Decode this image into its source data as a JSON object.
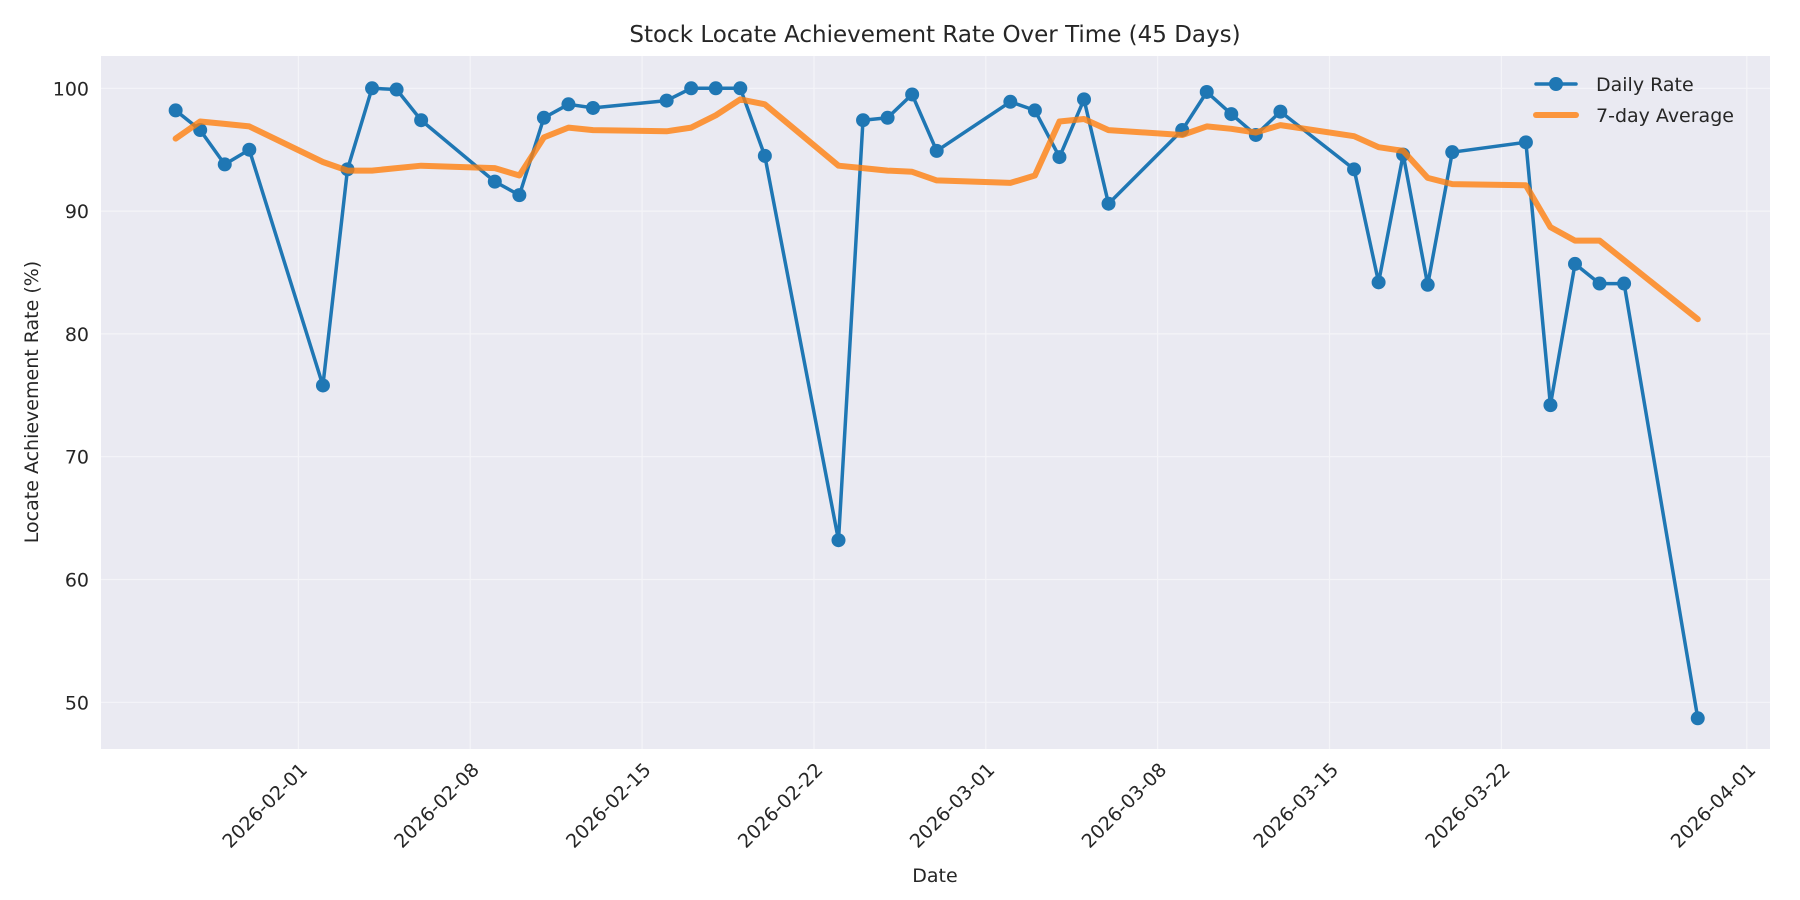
{
  "chart_data": {
    "type": "line",
    "title": "Stock Locate Achievement Rate Over Time (45 Days)",
    "xlabel": "Date",
    "ylabel": "Locate Achievement Rate (%)",
    "ylim": [
      46.3,
      102.6
    ],
    "yticks": [
      50,
      60,
      70,
      80,
      90,
      100
    ],
    "xticks": [
      "2026-02-01",
      "2026-02-08",
      "2026-02-15",
      "2026-02-22",
      "2026-03-01",
      "2026-03-08",
      "2026-03-15",
      "2026-03-22",
      "2026-04-01"
    ],
    "grid": true,
    "legend_position": "upper right",
    "x": [
      "2026-01-27",
      "2026-01-28",
      "2026-01-29",
      "2026-01-30",
      "2026-02-02",
      "2026-02-03",
      "2026-02-04",
      "2026-02-05",
      "2026-02-06",
      "2026-02-09",
      "2026-02-10",
      "2026-02-11",
      "2026-02-12",
      "2026-02-13",
      "2026-02-16",
      "2026-02-17",
      "2026-02-18",
      "2026-02-19",
      "2026-02-20",
      "2026-02-23",
      "2026-02-24",
      "2026-02-25",
      "2026-02-26",
      "2026-02-27",
      "2026-03-02",
      "2026-03-03",
      "2026-03-04",
      "2026-03-05",
      "2026-03-06",
      "2026-03-09",
      "2026-03-10",
      "2026-03-11",
      "2026-03-12",
      "2026-03-13",
      "2026-03-16",
      "2026-03-17",
      "2026-03-18",
      "2026-03-19",
      "2026-03-20",
      "2026-03-23",
      "2026-03-24",
      "2026-03-25",
      "2026-03-26",
      "2026-03-27",
      "2026-03-30"
    ],
    "series": [
      {
        "name": "Daily Rate",
        "color": "#1f77b4",
        "marker": "circle",
        "values": [
          98.2,
          96.6,
          93.8,
          95.0,
          75.8,
          93.4,
          100.0,
          99.9,
          97.4,
          92.4,
          91.3,
          97.6,
          98.7,
          98.4,
          99.0,
          100.0,
          100.0,
          100.0,
          94.5,
          63.2,
          97.4,
          97.6,
          99.5,
          94.9,
          98.9,
          98.2,
          94.4,
          99.1,
          90.6,
          96.6,
          99.7,
          97.9,
          96.2,
          98.1,
          93.4,
          84.2,
          94.6,
          84.0,
          94.8,
          95.6,
          74.2,
          85.7,
          84.1,
          84.1,
          48.7
        ]
      },
      {
        "name": "7-day Average",
        "color": "#ff7f0e",
        "marker": "none",
        "values": [
          95.9,
          97.3,
          97.1,
          96.9,
          94.0,
          93.3,
          93.3,
          93.5,
          93.7,
          93.5,
          92.9,
          96.0,
          96.8,
          96.6,
          96.5,
          96.8,
          97.8,
          99.1,
          98.7,
          93.7,
          93.5,
          93.3,
          93.2,
          92.5,
          92.3,
          92.9,
          97.3,
          97.5,
          96.6,
          96.2,
          96.9,
          96.7,
          96.4,
          97.0,
          96.1,
          95.2,
          94.9,
          92.7,
          92.2,
          92.1,
          88.7,
          87.6,
          87.6,
          86.0,
          81.2
        ]
      }
    ]
  },
  "colors": {
    "plot_background": "#eaeaf2",
    "grid": "#f5f5f8",
    "text": "#262626"
  }
}
